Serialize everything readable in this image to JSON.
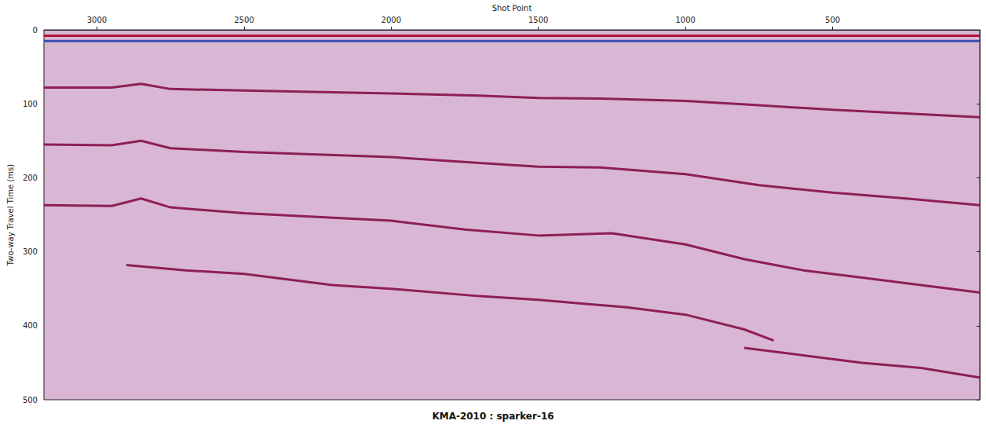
{
  "chart_data": {
    "type": "line",
    "title": "KMA-2010 : sparker-16",
    "x_label": "Shot Point",
    "y_label": "Two-way Travel Time (ms)",
    "xlim": [
      3180,
      0
    ],
    "xticks": [
      3000,
      2500,
      2000,
      1500,
      1000,
      500
    ],
    "ylim": [
      500,
      0
    ],
    "yticks": [
      0,
      100,
      200,
      300,
      400,
      500
    ],
    "grid": false,
    "series": [
      {
        "color": "#b0103a",
        "x": [
          3180,
          2500,
          2000,
          1500,
          1000,
          500,
          0
        ],
        "values": [
          8,
          8,
          8,
          8,
          8,
          8,
          8
        ]
      },
      {
        "color": "#3a4fb0",
        "x": [
          3180,
          2500,
          2000,
          1500,
          1000,
          500,
          0
        ],
        "values": [
          15,
          15,
          15,
          15,
          15,
          15,
          15
        ]
      },
      {
        "color": "#8e1f55",
        "x": [
          3180,
          2950,
          2850,
          2750,
          2500,
          2000,
          1700,
          1500,
          1290,
          1000,
          750,
          500,
          250,
          0
        ],
        "values": [
          78,
          78,
          73,
          80,
          82,
          86,
          89,
          92,
          93,
          96,
          102,
          108,
          113,
          118
        ]
      },
      {
        "color": "#8e1f55",
        "x": [
          3180,
          2950,
          2850,
          2750,
          2500,
          2000,
          1700,
          1500,
          1290,
          1000,
          750,
          500,
          250,
          0
        ],
        "values": [
          155,
          156,
          150,
          160,
          165,
          172,
          180,
          185,
          186,
          195,
          210,
          220,
          228,
          237
        ]
      },
      {
        "color": "#8e1f55",
        "x": [
          3180,
          2950,
          2850,
          2750,
          2500,
          2000,
          1750,
          1500,
          1250,
          1000,
          800,
          600,
          400,
          200,
          0
        ],
        "values": [
          237,
          238,
          228,
          240,
          248,
          258,
          270,
          278,
          275,
          290,
          310,
          325,
          335,
          345,
          355
        ]
      },
      {
        "color": "#8e1f55",
        "x": [
          2900,
          2700,
          2500,
          2200,
          2000,
          1700,
          1500,
          1200,
          1000,
          800,
          700
        ],
        "values": [
          318,
          325,
          330,
          345,
          350,
          360,
          365,
          375,
          385,
          405,
          420
        ]
      },
      {
        "color": "#8e1f55",
        "x": [
          800,
          600,
          400,
          200,
          0
        ],
        "values": [
          430,
          440,
          450,
          457,
          470
        ]
      }
    ]
  }
}
